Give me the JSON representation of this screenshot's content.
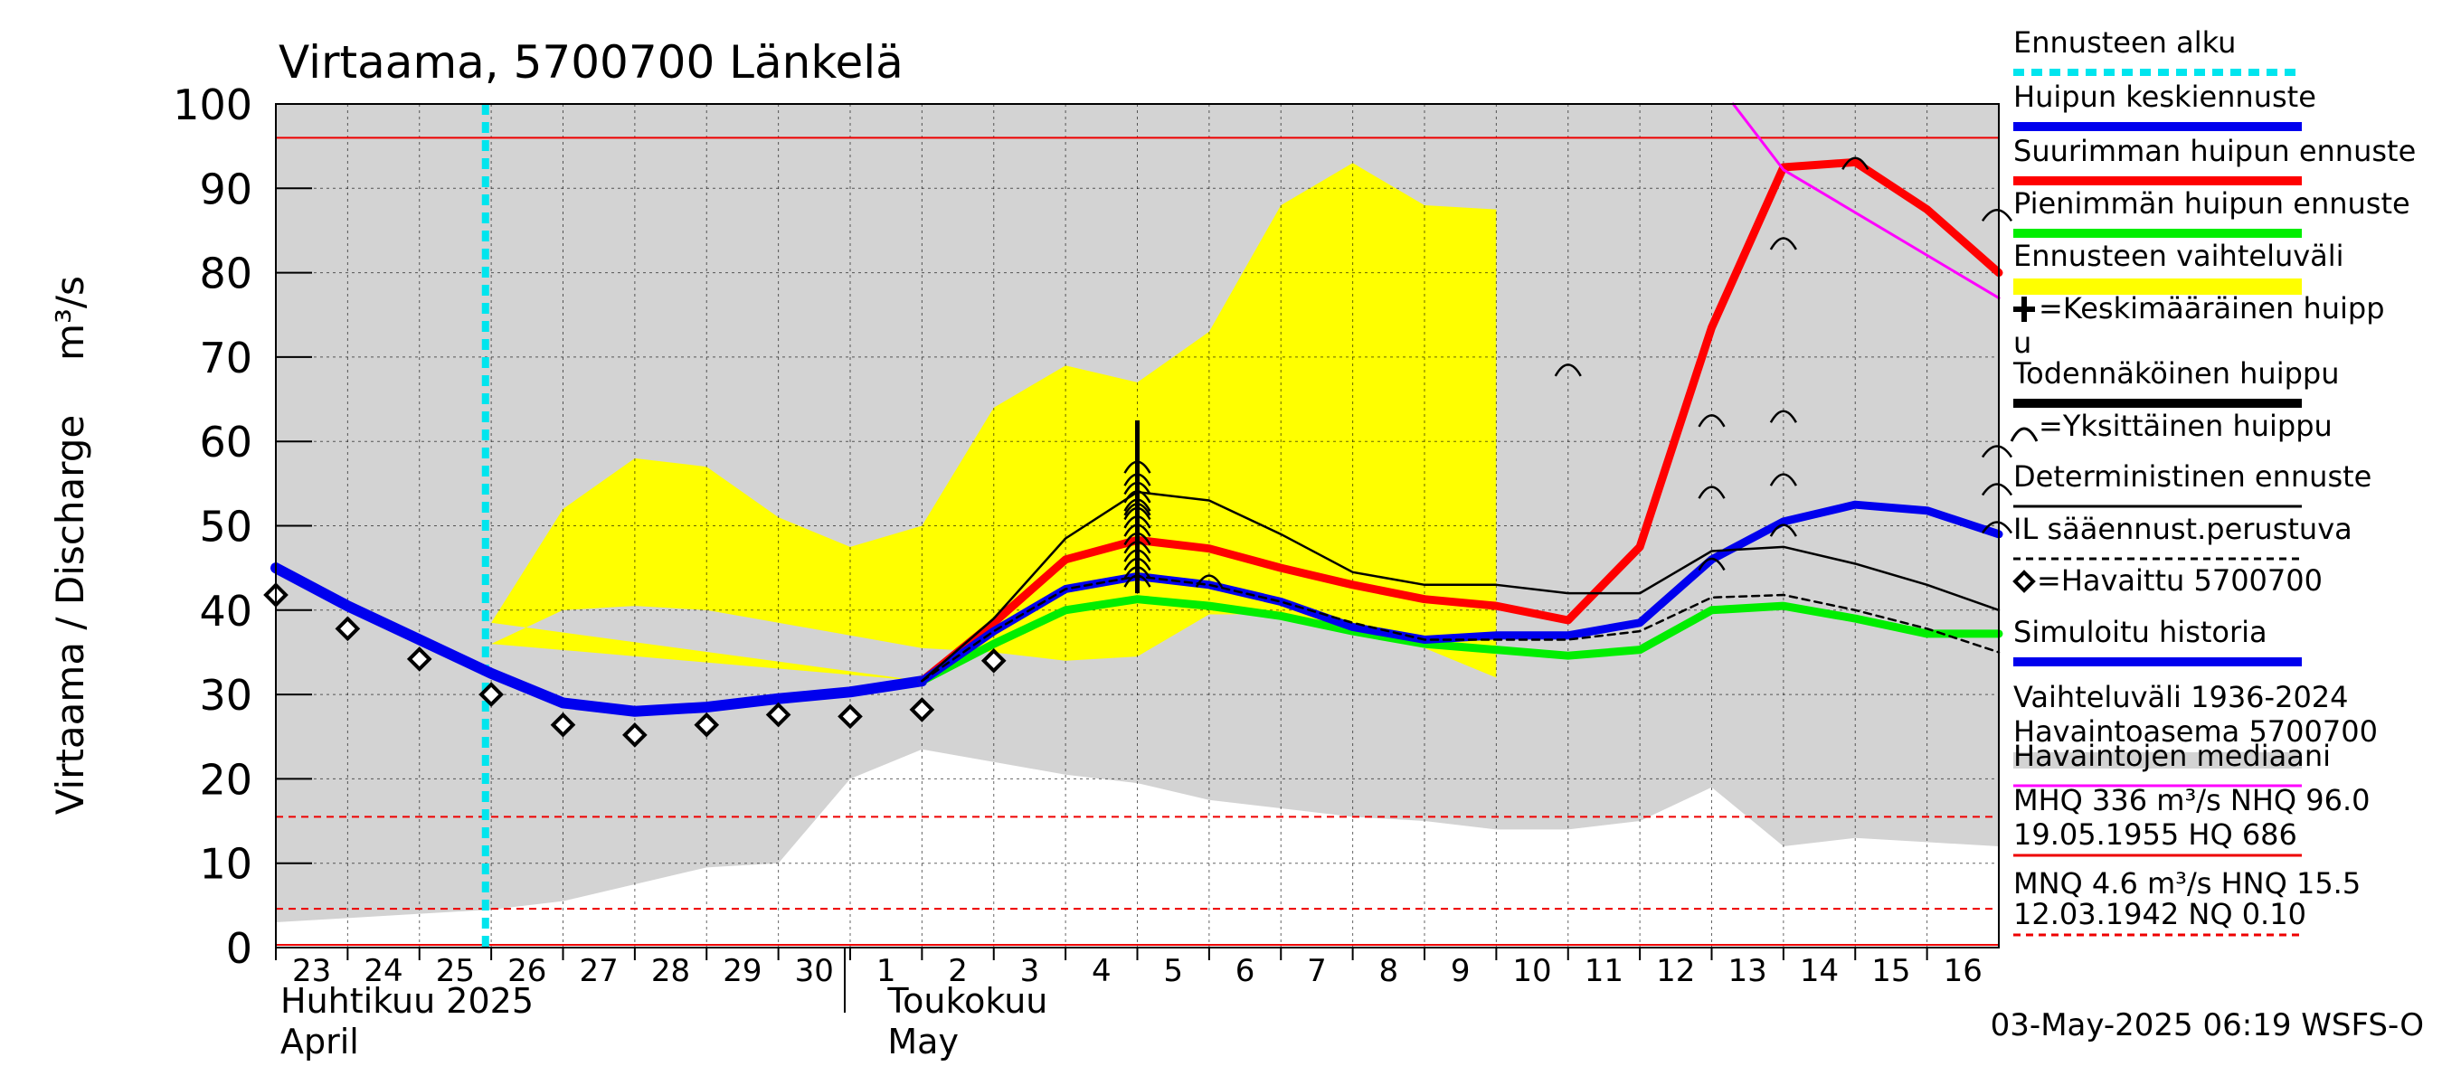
{
  "chart_data": {
    "type": "line",
    "title": "Virtaama, 5700700 Länkelä",
    "ylabel": "Virtaama / Discharge",
    "yunit": "m³/s",
    "ylim": [
      0,
      100
    ],
    "yticks": [
      0,
      10,
      20,
      30,
      40,
      50,
      60,
      70,
      80,
      90,
      100
    ],
    "grid": true,
    "x_day_labels": [
      "23",
      "24",
      "25",
      "26",
      "27",
      "28",
      "29",
      "30",
      "1",
      "2",
      "3",
      "4",
      "5",
      "6",
      "7",
      "8",
      "9",
      "10",
      "11",
      "12",
      "13",
      "14",
      "15",
      "16"
    ],
    "month_labels": {
      "april_fi": "Huhtikuu  2025",
      "april_en": "April",
      "may_fi": "Toukokuu",
      "may_en": "May"
    },
    "forecast_start_day": 3,
    "reference_lines": {
      "nhq": 96.0,
      "hnq": 15.5,
      "nq_line": 4.6
    },
    "historical_range": {
      "upper": [
        100,
        100,
        100,
        100,
        100,
        100,
        100,
        100,
        100,
        100,
        100,
        100,
        100,
        100,
        100,
        100,
        100,
        100,
        100,
        100,
        100,
        100,
        100,
        100,
        100
      ],
      "lower": [
        3,
        3.5,
        4,
        4.5,
        5.5,
        7.5,
        9.5,
        10,
        20,
        23.5,
        22,
        20.5,
        19.5,
        17.5,
        16.5,
        15.5,
        15,
        14,
        14,
        15,
        19,
        12,
        13,
        12.5,
        12
      ]
    },
    "forecast_range": {
      "upper": [
        38.5,
        52,
        58,
        57,
        51,
        47.5,
        50,
        64,
        69,
        67,
        73,
        88,
        93,
        88,
        87.5
      ],
      "lower": [
        36,
        40,
        40.5,
        40,
        38.5,
        37,
        35.5,
        35,
        34,
        34.5,
        39.5,
        39.5,
        37.5,
        35.5,
        32
      ]
    },
    "series": [
      {
        "name": "Simuloitu historia",
        "color": "#0000ee",
        "x": [
          0,
          1,
          2,
          3,
          4,
          5,
          6,
          7,
          8,
          9
        ],
        "y": [
          45,
          40.5,
          36.5,
          32.5,
          29,
          28,
          28.5,
          29.5,
          30.3,
          31.6
        ]
      },
      {
        "name": "Huipun keskiennuste",
        "color": "#0000ee",
        "x": [
          9,
          10,
          11,
          12,
          13,
          14,
          15,
          16,
          17,
          18,
          19,
          20,
          21,
          22,
          23,
          24
        ],
        "y": [
          31.6,
          37.5,
          42.5,
          44,
          43,
          41,
          38,
          36.5,
          37,
          37,
          38.5,
          46,
          50.5,
          52.5,
          51.8,
          49
        ]
      },
      {
        "name": "Suurimman huipun ennuste",
        "color": "#ff0000",
        "x": [
          9,
          10,
          11,
          12,
          13,
          14,
          15,
          16,
          17,
          18,
          19,
          20,
          21,
          22,
          23,
          24
        ],
        "y": [
          31.6,
          38.5,
          46,
          48.3,
          47.3,
          45,
          43,
          41.3,
          40.5,
          38.8,
          47.5,
          73.5,
          92.5,
          93.1,
          87.5,
          80
        ]
      },
      {
        "name": "Pienimmän huipun ennuste",
        "color": "#00ee00",
        "x": [
          9,
          10,
          11,
          12,
          13,
          14,
          15,
          16,
          17,
          18,
          19,
          20,
          21,
          22,
          23,
          24
        ],
        "y": [
          31.6,
          36,
          40,
          41.3,
          40.5,
          39.3,
          37.5,
          36,
          35.3,
          34.6,
          35.3,
          40,
          40.5,
          39,
          37.2,
          37.2
        ]
      },
      {
        "name": "Todennäköinen huippu",
        "color": "#000000",
        "x": [
          9,
          10,
          11,
          12,
          13,
          14,
          15,
          16,
          17,
          18,
          19,
          20,
          21,
          22,
          23,
          24
        ],
        "y": [
          31.6,
          39,
          48.5,
          54,
          53,
          49,
          44.5,
          43,
          43,
          42,
          42,
          47,
          47.5,
          45.5,
          43,
          40
        ]
      },
      {
        "name": "IL sääennust.perustuva",
        "color": "#000000",
        "dashed": true,
        "x": [
          9,
          10,
          11,
          12,
          13,
          14,
          15,
          16,
          17,
          18,
          19,
          20,
          21,
          22,
          23,
          24
        ],
        "y": [
          31.6,
          37.5,
          42.5,
          44,
          43,
          41,
          38.5,
          36.5,
          36.5,
          36.5,
          37.5,
          41.5,
          41.8,
          40,
          37.8,
          35
        ]
      },
      {
        "name": "Havaintojen mediaani",
        "color": "#ff00ff",
        "x": [
          20.3,
          21,
          24
        ],
        "y": [
          100,
          92.2,
          77
        ]
      }
    ],
    "observed": {
      "name": "Havaittu 5700700",
      "x": [
        0,
        1,
        2,
        3,
        4,
        5,
        6,
        7,
        8,
        9,
        10
      ],
      "y": [
        41.8,
        37.8,
        34.2,
        30,
        26.4,
        25.2,
        26.4,
        27.6,
        27.4,
        28.2,
        34
      ]
    },
    "individual_peaks": {
      "x": [
        12,
        12,
        12,
        12,
        12,
        12,
        12,
        12,
        12,
        12,
        12,
        12,
        12,
        12,
        12,
        13,
        18,
        20,
        20,
        20,
        21,
        21,
        21,
        21,
        22
      ],
      "y": [
        57,
        55.5,
        54.5,
        53.5,
        52.5,
        52,
        51.5,
        50.5,
        49.5,
        48.5,
        47.5,
        46.5,
        45.5,
        44.5,
        43.5,
        43.5,
        68.5,
        62.5,
        54,
        45.5,
        83.5,
        63,
        55.5,
        49.5,
        93
      ]
    },
    "edge_peaks": [
      87,
      59,
      54.5,
      50
    ],
    "mean_peak": {
      "x": 12,
      "y_from": 42,
      "y_to": 62.5
    },
    "legend": [
      {
        "label": "Ennusteen alku",
        "color": "#00e5ee",
        "style": "dotted"
      },
      {
        "label": "Huipun keskiennuste",
        "color": "#0000ee",
        "style": "thick"
      },
      {
        "label": "Suurimman huipun ennuste",
        "color": "#ff0000",
        "style": "thick"
      },
      {
        "label": "Pienimmän huipun ennuste",
        "color": "#00ee00",
        "style": "thick"
      },
      {
        "label": "Ennusteen vaihteluväli",
        "color": "#ffff00",
        "style": "band"
      },
      {
        "label": "=Keskimääräinen huipp",
        "label2": "u",
        "color": "#000000",
        "style": "plus"
      },
      {
        "label": "Todennäköinen huippu",
        "color": "#000000",
        "style": "thick"
      },
      {
        "label": "=Yksittäinen huippu",
        "color": "#000000",
        "style": "arc"
      },
      {
        "label": "Deterministinen ennuste",
        "color": "#000000",
        "style": "thin"
      },
      {
        "label": "IL sääennust.perustuva",
        "color": "#000000",
        "style": "dashed"
      },
      {
        "label": "=Havaittu 5700700",
        "color": "#000000",
        "style": "diamond"
      },
      {
        "label": "Simuloitu historia",
        "color": "#0000ee",
        "style": "thick"
      },
      {
        "label": "Vaihteluväli 1936-2024",
        "label2": " Havaintoasema 5700700",
        "color": "#d3d3d3",
        "style": "band"
      },
      {
        "label": "Havaintojen mediaani",
        "color": "#ff00ff",
        "style": "thin"
      }
    ],
    "stats": {
      "line1": "MHQ  336 m³/s NHQ 96.0",
      "line2": "19.05.1955 HQ  686",
      "line3": "MNQ  4.6 m³/s HNQ 15.5",
      "line4": "12.03.1942 NQ 0.10"
    },
    "footer": "03-May-2025 06:19 WSFS-O"
  }
}
